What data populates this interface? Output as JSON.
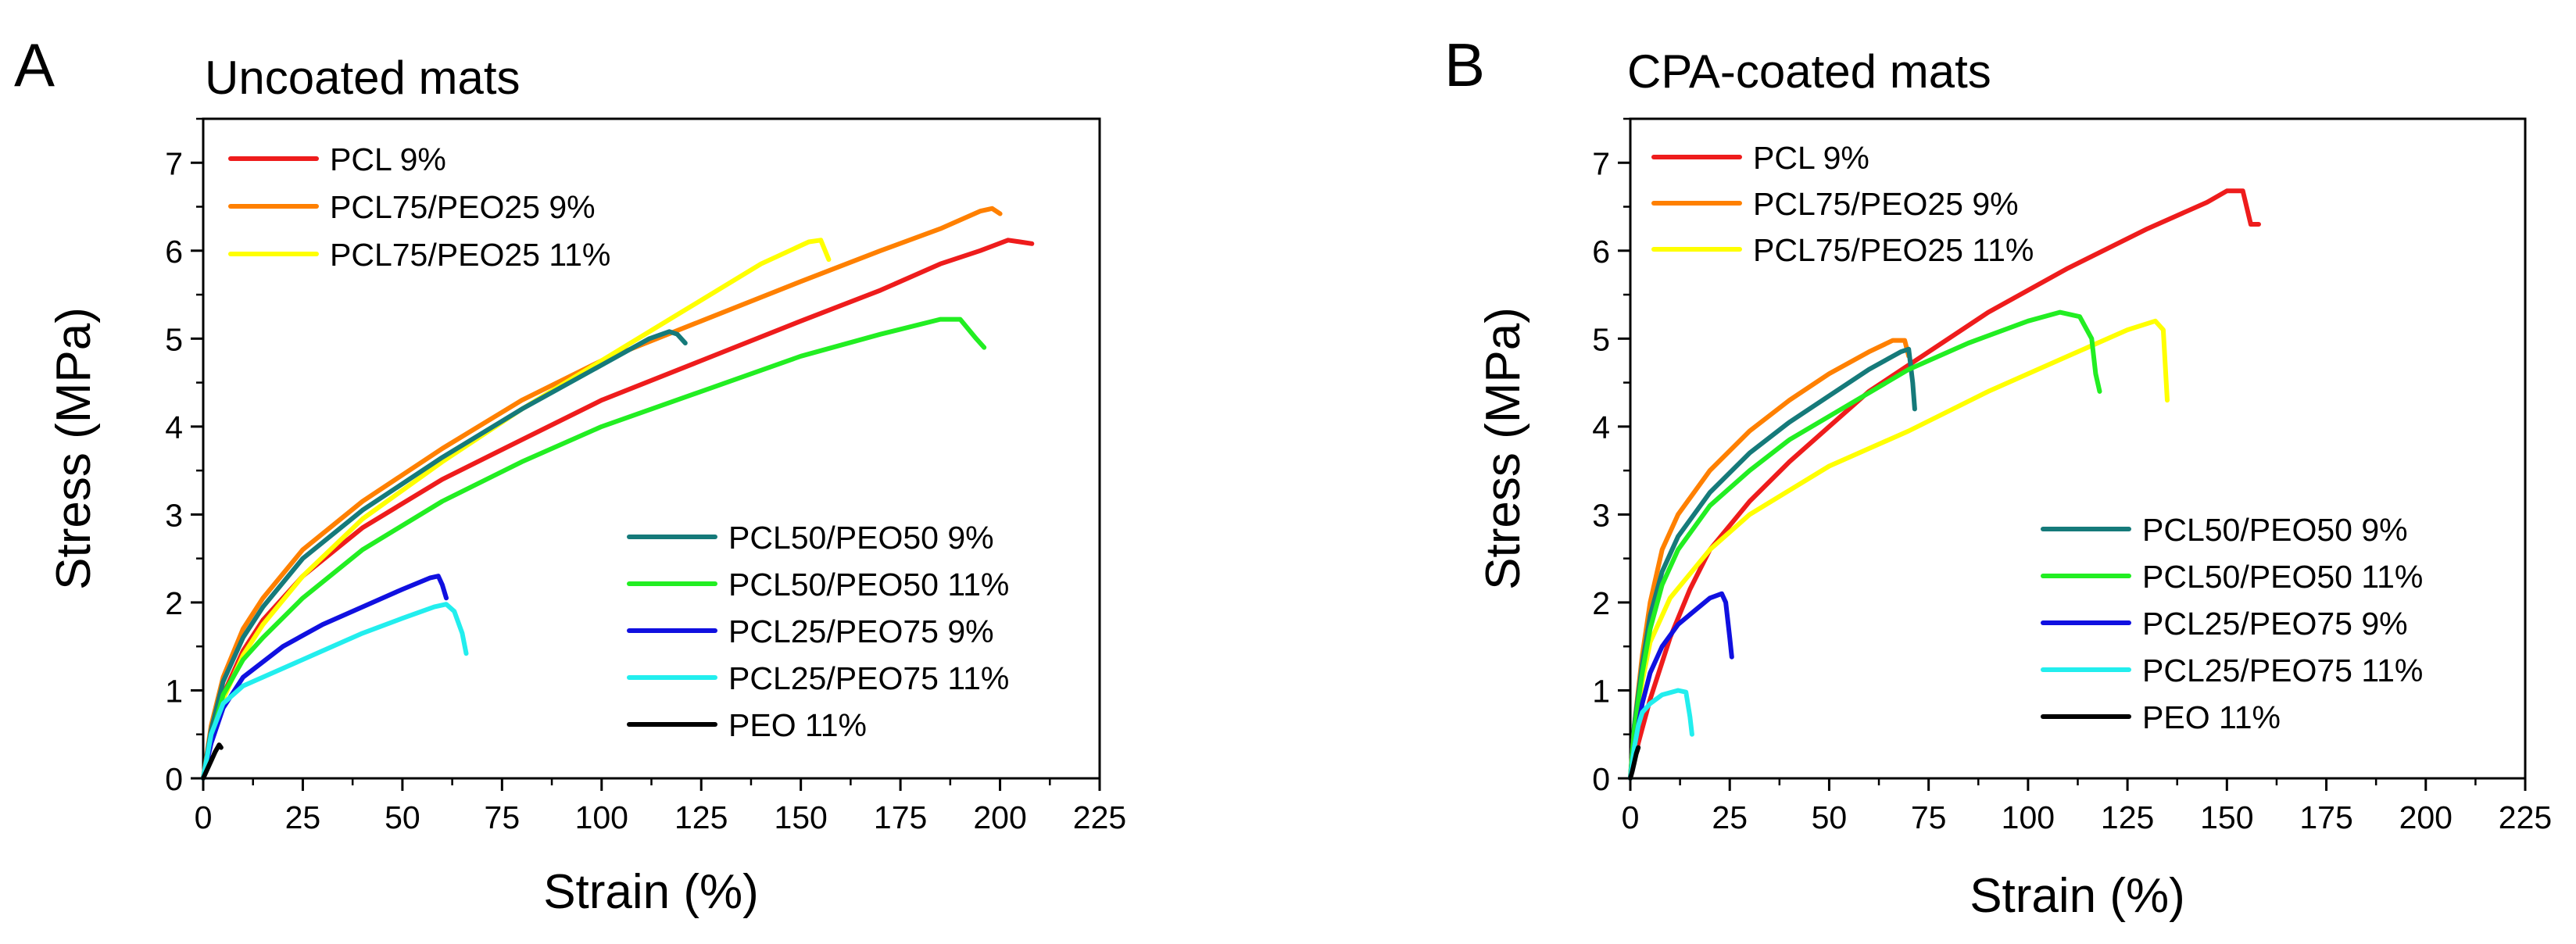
{
  "chart_data": [
    {
      "panel_letter": "A",
      "title": "Uncoated mats",
      "type": "line",
      "xlabel": "Strain (%)",
      "ylabel": "Stress (MPa)",
      "xlim": [
        0,
        225
      ],
      "ylim": [
        0,
        7.5
      ],
      "xticks": [
        0,
        25,
        50,
        75,
        100,
        125,
        150,
        175,
        200,
        225
      ],
      "yticks": [
        0,
        1,
        2,
        3,
        4,
        5,
        6,
        7
      ],
      "grid": false,
      "legend_top_left": [
        "PCL 9%",
        "PCL75/PEO25 9%",
        "PCL75/PEO25 11%"
      ],
      "legend_bottom_right": [
        "PCL50/PEO50 9%",
        "PCL50/PEO50 11%",
        "PCL25/PEO75 9%",
        "PCL25/PEO75 11%",
        "PEO 11%"
      ],
      "series": [
        {
          "name": "PCL 9%",
          "color": "#ee1c1c",
          "points": [
            [
              0,
              0
            ],
            [
              2,
              0.45
            ],
            [
              5,
              0.95
            ],
            [
              10,
              1.45
            ],
            [
              15,
              1.8
            ],
            [
              25,
              2.3
            ],
            [
              40,
              2.85
            ],
            [
              60,
              3.4
            ],
            [
              80,
              3.85
            ],
            [
              100,
              4.3
            ],
            [
              125,
              4.75
            ],
            [
              150,
              5.2
            ],
            [
              170,
              5.55
            ],
            [
              185,
              5.85
            ],
            [
              195,
              6.0
            ],
            [
              202,
              6.12
            ],
            [
              205,
              6.1
            ],
            [
              208,
              6.08
            ]
          ]
        },
        {
          "name": "PCL75/PEO25 9%",
          "color": "#ff8000",
          "points": [
            [
              0,
              0
            ],
            [
              2,
              0.6
            ],
            [
              5,
              1.15
            ],
            [
              10,
              1.7
            ],
            [
              15,
              2.05
            ],
            [
              25,
              2.6
            ],
            [
              40,
              3.15
            ],
            [
              60,
              3.75
            ],
            [
              80,
              4.3
            ],
            [
              100,
              4.75
            ],
            [
              125,
              5.2
            ],
            [
              150,
              5.65
            ],
            [
              170,
              6.0
            ],
            [
              185,
              6.25
            ],
            [
              195,
              6.45
            ],
            [
              198,
              6.48
            ],
            [
              200,
              6.42
            ]
          ]
        },
        {
          "name": "PCL75/PEO25 11%",
          "color": "#ffff00",
          "points": [
            [
              0,
              0
            ],
            [
              2,
              0.45
            ],
            [
              5,
              0.9
            ],
            [
              10,
              1.4
            ],
            [
              15,
              1.75
            ],
            [
              25,
              2.3
            ],
            [
              40,
              2.95
            ],
            [
              60,
              3.6
            ],
            [
              80,
              4.2
            ],
            [
              100,
              4.75
            ],
            [
              120,
              5.3
            ],
            [
              140,
              5.85
            ],
            [
              152,
              6.1
            ],
            [
              155,
              6.12
            ],
            [
              157,
              5.9
            ]
          ]
        },
        {
          "name": "PCL50/PEO50 9%",
          "color": "#157a7a",
          "points": [
            [
              0,
              0
            ],
            [
              2,
              0.55
            ],
            [
              5,
              1.1
            ],
            [
              10,
              1.6
            ],
            [
              15,
              1.95
            ],
            [
              25,
              2.5
            ],
            [
              40,
              3.05
            ],
            [
              60,
              3.65
            ],
            [
              80,
              4.2
            ],
            [
              100,
              4.7
            ],
            [
              112,
              5.0
            ],
            [
              117,
              5.08
            ],
            [
              119,
              5.05
            ],
            [
              121,
              4.95
            ]
          ]
        },
        {
          "name": "PCL50/PEO50 11%",
          "color": "#22ee22",
          "points": [
            [
              0,
              0
            ],
            [
              2,
              0.45
            ],
            [
              5,
              0.95
            ],
            [
              10,
              1.35
            ],
            [
              15,
              1.6
            ],
            [
              25,
              2.05
            ],
            [
              40,
              2.6
            ],
            [
              60,
              3.15
            ],
            [
              80,
              3.6
            ],
            [
              100,
              4.0
            ],
            [
              125,
              4.4
            ],
            [
              150,
              4.8
            ],
            [
              170,
              5.05
            ],
            [
              185,
              5.22
            ],
            [
              190,
              5.22
            ],
            [
              194,
              5.0
            ],
            [
              196,
              4.9
            ]
          ]
        },
        {
          "name": "PCL25/PEO75 9%",
          "color": "#1010e0",
          "points": [
            [
              0,
              0
            ],
            [
              2,
              0.4
            ],
            [
              5,
              0.8
            ],
            [
              10,
              1.15
            ],
            [
              20,
              1.5
            ],
            [
              30,
              1.75
            ],
            [
              40,
              1.95
            ],
            [
              50,
              2.15
            ],
            [
              57,
              2.28
            ],
            [
              59,
              2.3
            ],
            [
              60,
              2.2
            ],
            [
              61,
              2.05
            ]
          ]
        },
        {
          "name": "PCL25/PEO75 11%",
          "color": "#22eeee",
          "points": [
            [
              0,
              0
            ],
            [
              2,
              0.5
            ],
            [
              5,
              0.85
            ],
            [
              10,
              1.05
            ],
            [
              20,
              1.25
            ],
            [
              30,
              1.45
            ],
            [
              40,
              1.65
            ],
            [
              50,
              1.82
            ],
            [
              58,
              1.95
            ],
            [
              61,
              1.98
            ],
            [
              63,
              1.9
            ],
            [
              65,
              1.65
            ],
            [
              66,
              1.42
            ]
          ]
        },
        {
          "name": "PEO 11%",
          "color": "#000000",
          "points": [
            [
              0,
              0
            ],
            [
              1,
              0.1
            ],
            [
              2,
              0.2
            ],
            [
              3,
              0.3
            ],
            [
              4,
              0.38
            ],
            [
              4.5,
              0.35
            ]
          ]
        }
      ]
    },
    {
      "panel_letter": "B",
      "title": "CPA-coated mats",
      "type": "line",
      "xlabel": "Strain (%)",
      "ylabel": "Stress (MPa)",
      "xlim": [
        0,
        225
      ],
      "ylim": [
        0,
        7.5
      ],
      "xticks": [
        0,
        25,
        50,
        75,
        100,
        125,
        150,
        175,
        200,
        225
      ],
      "yticks": [
        0,
        1,
        2,
        3,
        4,
        5,
        6,
        7
      ],
      "grid": false,
      "legend_top_left": [
        "PCL 9%",
        "PCL75/PEO25 9%",
        "PCL75/PEO25 11%"
      ],
      "legend_bottom_right": [
        "PCL50/PEO50 9%",
        "PCL50/PEO50 11%",
        "PCL25/PEO75 9%",
        "PCL25/PEO75 11%",
        "PEO 11%"
      ],
      "series": [
        {
          "name": "PCL 9%",
          "color": "#ee1c1c",
          "points": [
            [
              0,
              0
            ],
            [
              2,
              0.4
            ],
            [
              5,
              0.9
            ],
            [
              10,
              1.6
            ],
            [
              15,
              2.15
            ],
            [
              20,
              2.6
            ],
            [
              30,
              3.15
            ],
            [
              40,
              3.6
            ],
            [
              50,
              4.0
            ],
            [
              60,
              4.4
            ],
            [
              75,
              4.85
            ],
            [
              90,
              5.3
            ],
            [
              110,
              5.8
            ],
            [
              130,
              6.25
            ],
            [
              145,
              6.55
            ],
            [
              150,
              6.68
            ],
            [
              154,
              6.68
            ],
            [
              156,
              6.3
            ],
            [
              158,
              6.3
            ]
          ]
        },
        {
          "name": "PCL75/PEO25 9%",
          "color": "#ff8000",
          "points": [
            [
              0,
              0
            ],
            [
              1,
              0.6
            ],
            [
              3,
              1.4
            ],
            [
              5,
              2.0
            ],
            [
              8,
              2.6
            ],
            [
              12,
              3.0
            ],
            [
              20,
              3.5
            ],
            [
              30,
              3.95
            ],
            [
              40,
              4.3
            ],
            [
              50,
              4.6
            ],
            [
              60,
              4.85
            ],
            [
              66,
              4.98
            ],
            [
              69,
              4.98
            ],
            [
              70,
              4.8
            ]
          ]
        },
        {
          "name": "PCL75/PEO25 11%",
          "color": "#ffff00",
          "points": [
            [
              0,
              0
            ],
            [
              1,
              0.5
            ],
            [
              3,
              1.1
            ],
            [
              5,
              1.55
            ],
            [
              10,
              2.05
            ],
            [
              20,
              2.6
            ],
            [
              30,
              3.0
            ],
            [
              50,
              3.55
            ],
            [
              70,
              3.95
            ],
            [
              90,
              4.4
            ],
            [
              110,
              4.8
            ],
            [
              125,
              5.1
            ],
            [
              132,
              5.2
            ],
            [
              134,
              5.1
            ],
            [
              135,
              4.3
            ]
          ]
        },
        {
          "name": "PCL50/PEO50 9%",
          "color": "#157a7a",
          "points": [
            [
              0,
              0
            ],
            [
              1,
              0.6
            ],
            [
              3,
              1.3
            ],
            [
              5,
              1.85
            ],
            [
              8,
              2.35
            ],
            [
              12,
              2.75
            ],
            [
              20,
              3.25
            ],
            [
              30,
              3.7
            ],
            [
              40,
              4.05
            ],
            [
              50,
              4.35
            ],
            [
              60,
              4.65
            ],
            [
              68,
              4.85
            ],
            [
              70,
              4.88
            ],
            [
              71,
              4.5
            ],
            [
              71.5,
              4.2
            ]
          ]
        },
        {
          "name": "PCL50/PEO50 11%",
          "color": "#22ee22",
          "points": [
            [
              0,
              0
            ],
            [
              1,
              0.55
            ],
            [
              3,
              1.2
            ],
            [
              5,
              1.7
            ],
            [
              8,
              2.2
            ],
            [
              12,
              2.6
            ],
            [
              20,
              3.1
            ],
            [
              30,
              3.5
            ],
            [
              40,
              3.85
            ],
            [
              55,
              4.25
            ],
            [
              70,
              4.65
            ],
            [
              85,
              4.95
            ],
            [
              100,
              5.2
            ],
            [
              108,
              5.3
            ],
            [
              113,
              5.25
            ],
            [
              116,
              5.0
            ],
            [
              117,
              4.6
            ],
            [
              118,
              4.4
            ]
          ]
        },
        {
          "name": "PCL25/PEO75 9%",
          "color": "#1010e0",
          "points": [
            [
              0,
              0
            ],
            [
              1,
              0.35
            ],
            [
              3,
              0.85
            ],
            [
              5,
              1.2
            ],
            [
              8,
              1.5
            ],
            [
              12,
              1.75
            ],
            [
              16,
              1.9
            ],
            [
              20,
              2.05
            ],
            [
              23,
              2.1
            ],
            [
              24,
              2.0
            ],
            [
              25,
              1.6
            ],
            [
              25.5,
              1.38
            ]
          ]
        },
        {
          "name": "PCL25/PEO75 11%",
          "color": "#22eeee",
          "points": [
            [
              0,
              0
            ],
            [
              1,
              0.35
            ],
            [
              2,
              0.6
            ],
            [
              3,
              0.75
            ],
            [
              5,
              0.85
            ],
            [
              8,
              0.95
            ],
            [
              12,
              1.0
            ],
            [
              14,
              0.98
            ],
            [
              15,
              0.7
            ],
            [
              15.5,
              0.5
            ]
          ]
        },
        {
          "name": "PEO 11%",
          "color": "#000000",
          "points": [
            [
              0,
              0
            ],
            [
              0.5,
              0.08
            ],
            [
              1,
              0.18
            ],
            [
              1.5,
              0.28
            ],
            [
              2,
              0.35
            ]
          ]
        }
      ]
    }
  ]
}
